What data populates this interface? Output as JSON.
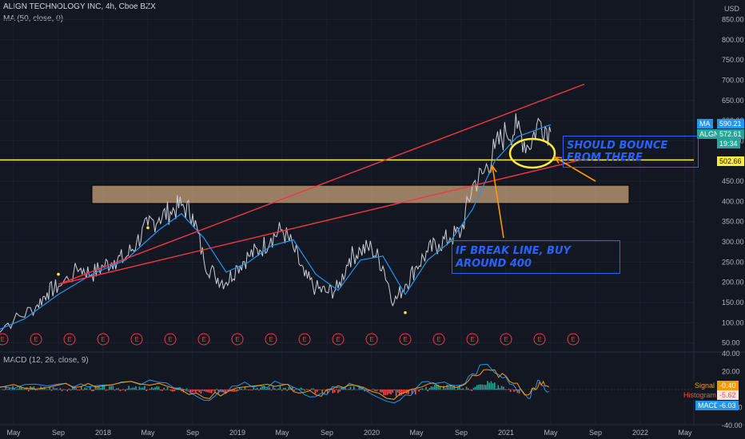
{
  "header": {
    "symbol_line": "ALIGN TECHNOLOGY INC, 4h, Cboe BZX",
    "ma_line": "MA (50, close, 0)",
    "currency": "USD"
  },
  "macd_header": "MACD (12, 26, close, 9)",
  "earnings_marker": "E",
  "price_tags": {
    "ma_label": "MA",
    "ma_value": "590.21",
    "symbol_label": "ALGN",
    "price_value": "572.61",
    "countdown": "19:34",
    "level_value": "502.66"
  },
  "macd_tags": {
    "signal_label": "Signal",
    "signal_value": "-0.40",
    "histogram_label": "Histogram",
    "histogram_value": "-5.62",
    "macd_label": "MACD",
    "macd_value": "-6.03"
  },
  "annotations": {
    "bounce": "SHOULD BOUNCE FROM THERE",
    "break": "IF BREAK LINE, BUY AROUND 400"
  },
  "colors": {
    "background": "#131722",
    "price_line": "#c9ced6",
    "ma_line": "#2196f3",
    "trend_line": "#f23645",
    "level_line": "#ffeb3b",
    "zone_fill": "#c8a17a",
    "arrow": "#ff9800",
    "annotation": "#2962ff",
    "macd_line": "#2196f3",
    "signal_line": "#ff9800",
    "hist_up": "#26a69a",
    "hist_down": "#ef5350"
  },
  "chart_data": [
    {
      "type": "line",
      "title": "ALIGN TECHNOLOGY INC, 4h, Cboe BZX",
      "price_axis": {
        "ticks": [
          50,
          100,
          150,
          200,
          250,
          300,
          350,
          400,
          450,
          500,
          550,
          600,
          650,
          700,
          750,
          800,
          850
        ],
        "tick_labels": [
          "50.00",
          "100.00",
          "150.00",
          "200.00",
          "250.00",
          "300.00",
          "350.00",
          "400.00",
          "450.00",
          "500.00",
          "550.00",
          "600.00",
          "650.00",
          "700.00",
          "750.00",
          "800.00",
          "850.00"
        ],
        "range": [
          50,
          850
        ]
      },
      "time_axis": {
        "labels": [
          "May",
          "Sep",
          "2018",
          "May",
          "Sep",
          "2019",
          "May",
          "Sep",
          "2020",
          "May",
          "Sep",
          "2021",
          "May",
          "Sep",
          "2022",
          "May"
        ],
        "range": [
          "2017-05",
          "2022-07"
        ]
      },
      "series": [
        {
          "name": "ALGN",
          "points": [
            [
              "2017-03",
              80
            ],
            [
              "2017-05",
              105
            ],
            [
              "2017-07",
              140
            ],
            [
              "2017-08",
              175
            ],
            [
              "2017-09",
              190
            ],
            [
              "2017-11",
              235
            ],
            [
              "2017-12",
              220
            ],
            [
              "2018-01",
              240
            ],
            [
              "2018-02",
              255
            ],
            [
              "2018-03",
              260
            ],
            [
              "2018-04",
              300
            ],
            [
              "2018-05",
              340
            ],
            [
              "2018-06",
              360
            ],
            [
              "2018-07",
              375
            ],
            [
              "2018-08",
              390
            ],
            [
              "2018-09",
              370
            ],
            [
              "2018-10",
              255
            ],
            [
              "2018-11",
              215
            ],
            [
              "2018-12",
              200
            ],
            [
              "2019-01",
              240
            ],
            [
              "2019-02",
              265
            ],
            [
              "2019-03",
              280
            ],
            [
              "2019-04",
              310
            ],
            [
              "2019-05",
              330
            ],
            [
              "2019-06",
              285
            ],
            [
              "2019-07",
              215
            ],
            [
              "2019-08",
              185
            ],
            [
              "2019-09",
              175
            ],
            [
              "2019-10",
              185
            ],
            [
              "2019-11",
              260
            ],
            [
              "2019-12",
              280
            ],
            [
              "2020-01",
              285
            ],
            [
              "2020-02",
              240
            ],
            [
              "2020-03",
              150
            ],
            [
              "2020-04",
              195
            ],
            [
              "2020-05",
              240
            ],
            [
              "2020-06",
              275
            ],
            [
              "2020-07",
              295
            ],
            [
              "2020-08",
              310
            ],
            [
              "2020-09",
              325
            ],
            [
              "2020-10",
              440
            ],
            [
              "2020-11",
              470
            ],
            [
              "2020-12",
              530
            ],
            [
              "2021-01",
              570
            ],
            [
              "2021-02",
              580
            ],
            [
              "2021-03",
              535
            ],
            [
              "2021-04",
              600
            ],
            [
              "2021-05",
              572
            ]
          ]
        },
        {
          "name": "MA",
          "points": [
            [
              "2017-03",
              75
            ],
            [
              "2017-06",
              110
            ],
            [
              "2017-09",
              170
            ],
            [
              "2017-12",
              220
            ],
            [
              "2018-03",
              255
            ],
            [
              "2018-06",
              330
            ],
            [
              "2018-08",
              370
            ],
            [
              "2018-10",
              310
            ],
            [
              "2018-12",
              225
            ],
            [
              "2019-02",
              250
            ],
            [
              "2019-04",
              290
            ],
            [
              "2019-06",
              305
            ],
            [
              "2019-08",
              220
            ],
            [
              "2019-10",
              180
            ],
            [
              "2019-12",
              255
            ],
            [
              "2020-02",
              265
            ],
            [
              "2020-04",
              170
            ],
            [
              "2020-06",
              255
            ],
            [
              "2020-08",
              300
            ],
            [
              "2020-10",
              380
            ],
            [
              "2020-12",
              500
            ],
            [
              "2021-02",
              560
            ],
            [
              "2021-04",
              580
            ],
            [
              "2021-05",
              590
            ]
          ]
        }
      ],
      "trend_lines": [
        {
          "from": [
            "2017-09",
            195
          ],
          "to": [
            "2021-08",
            690
          ]
        },
        {
          "from": [
            "2017-09",
            195
          ],
          "to": [
            "2021-08",
            505
          ]
        }
      ],
      "horizontal_level": 502.66,
      "zone": {
        "from": "2017-12",
        "to": "2021-12",
        "low": 395,
        "high": 440
      },
      "pivot_dots": [
        [
          "2017-09",
          220
        ],
        [
          "2018-05",
          335
        ],
        [
          "2020-04",
          125
        ]
      ],
      "earnings_dates": [
        "2017-04",
        "2017-07",
        "2017-10",
        "2018-01",
        "2018-04",
        "2018-07",
        "2018-10",
        "2019-01",
        "2019-04",
        "2019-07",
        "2019-10",
        "2020-01",
        "2020-04",
        "2020-07",
        "2020-10",
        "2021-01",
        "2021-04",
        "2021-07"
      ]
    },
    {
      "type": "line",
      "title": "MACD (12, 26, close, 9)",
      "value_axis": {
        "ticks": [
          -40,
          -20,
          20,
          40
        ],
        "tick_labels": [
          "-40.00",
          "-20.00",
          "20.00",
          "40.00"
        ],
        "range": [
          -45,
          45
        ]
      },
      "series": [
        {
          "name": "MACD",
          "points": [
            [
              "2017-03",
              2
            ],
            [
              "2017-09",
              6
            ],
            [
              "2018-01",
              5
            ],
            [
              "2018-06",
              8
            ],
            [
              "2018-10",
              -12
            ],
            [
              "2019-01",
              4
            ],
            [
              "2019-05",
              6
            ],
            [
              "2019-08",
              -8
            ],
            [
              "2019-11",
              7
            ],
            [
              "2020-03",
              -15
            ],
            [
              "2020-06",
              9
            ],
            [
              "2020-09",
              5
            ],
            [
              "2020-11",
              28
            ],
            [
              "2021-01",
              14
            ],
            [
              "2021-03",
              -10
            ],
            [
              "2021-04",
              10
            ],
            [
              "2021-05",
              -6
            ]
          ]
        },
        {
          "name": "Signal",
          "points": [
            [
              "2017-03",
              1
            ],
            [
              "2017-09",
              5
            ],
            [
              "2018-01",
              4
            ],
            [
              "2018-06",
              7
            ],
            [
              "2018-10",
              -9
            ],
            [
              "2019-01",
              2
            ],
            [
              "2019-05",
              5
            ],
            [
              "2019-08",
              -6
            ],
            [
              "2019-11",
              5
            ],
            [
              "2020-03",
              -11
            ],
            [
              "2020-06",
              6
            ],
            [
              "2020-09",
              4
            ],
            [
              "2020-11",
              22
            ],
            [
              "2021-01",
              15
            ],
            [
              "2021-03",
              -6
            ],
            [
              "2021-04",
              8
            ],
            [
              "2021-05",
              0
            ]
          ]
        }
      ]
    }
  ]
}
